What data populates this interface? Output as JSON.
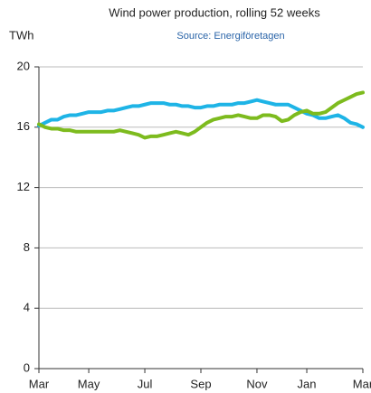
{
  "chart_data": {
    "type": "line",
    "title": "Wind power production, rolling 52 weeks",
    "subtitle": "Source: Energiföretagen",
    "y_label": "TWh",
    "categories": [
      "Mar",
      null,
      null,
      null,
      null,
      null,
      null,
      null,
      "May",
      null,
      null,
      null,
      null,
      null,
      null,
      null,
      null,
      "Jul",
      null,
      null,
      null,
      null,
      null,
      null,
      null,
      null,
      "Sep",
      null,
      null,
      null,
      null,
      null,
      null,
      null,
      null,
      "Nov",
      null,
      null,
      null,
      null,
      null,
      null,
      null,
      "Jan",
      null,
      null,
      null,
      null,
      null,
      null,
      null,
      null,
      "Mar"
    ],
    "series": [
      {
        "color": "#1eb4e6",
        "values": [
          16.1,
          16.3,
          16.5,
          16.5,
          16.7,
          16.8,
          16.8,
          16.9,
          17.0,
          17.0,
          17.0,
          17.1,
          17.1,
          17.2,
          17.3,
          17.4,
          17.4,
          17.5,
          17.6,
          17.6,
          17.6,
          17.5,
          17.5,
          17.4,
          17.4,
          17.3,
          17.3,
          17.4,
          17.4,
          17.5,
          17.5,
          17.5,
          17.6,
          17.6,
          17.7,
          17.8,
          17.7,
          17.6,
          17.5,
          17.5,
          17.5,
          17.3,
          17.1,
          16.9,
          16.8,
          16.6,
          16.6,
          16.7,
          16.8,
          16.6,
          16.3,
          16.2,
          16.0
        ]
      },
      {
        "color": "#7dbb1e",
        "values": [
          16.2,
          16.0,
          15.9,
          15.9,
          15.8,
          15.8,
          15.7,
          15.7,
          15.7,
          15.7,
          15.7,
          15.7,
          15.7,
          15.8,
          15.7,
          15.6,
          15.5,
          15.3,
          15.4,
          15.4,
          15.5,
          15.6,
          15.7,
          15.6,
          15.5,
          15.7,
          16.0,
          16.3,
          16.5,
          16.6,
          16.7,
          16.7,
          16.8,
          16.7,
          16.6,
          16.6,
          16.8,
          16.8,
          16.7,
          16.4,
          16.5,
          16.8,
          17.0,
          17.1,
          16.9,
          16.9,
          17.0,
          17.3,
          17.6,
          17.8,
          18.0,
          18.2,
          18.3
        ]
      }
    ],
    "ylim": [
      0,
      20
    ],
    "yticks": [
      0,
      4,
      8,
      12,
      16,
      20
    ],
    "grid": true
  }
}
